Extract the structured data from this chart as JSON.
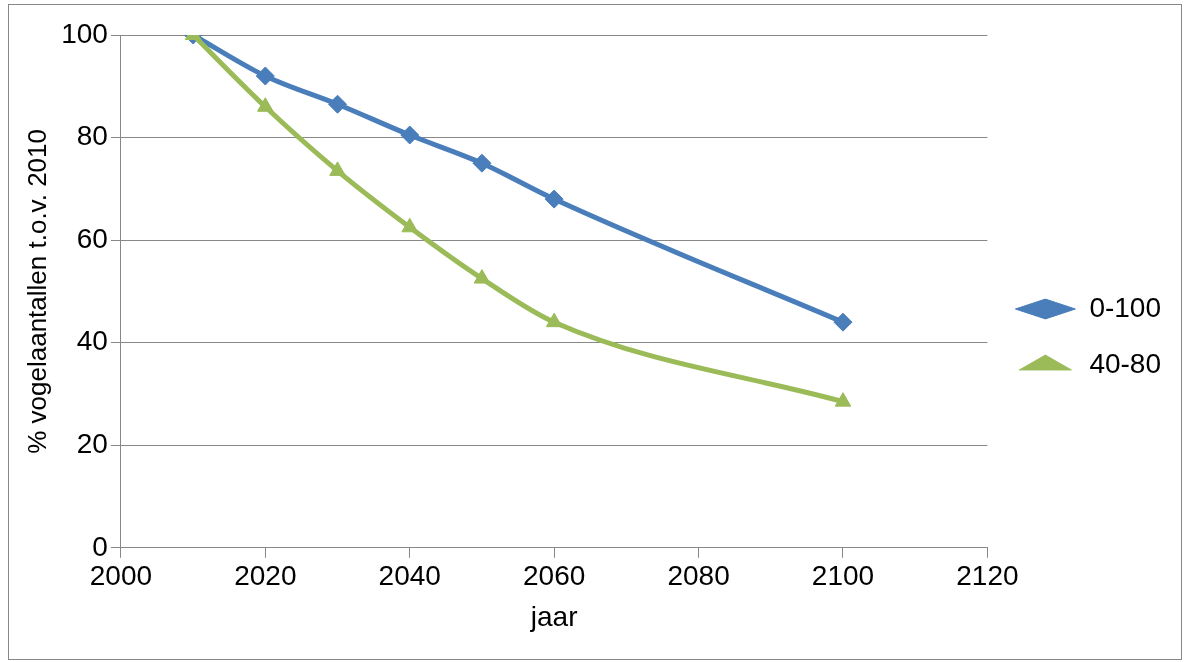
{
  "chart_data": {
    "type": "line",
    "xlabel": "jaar",
    "ylabel": "% vogelaantallen t.o.v. 2010",
    "x": [
      2010,
      2020,
      2030,
      2040,
      2050,
      2060,
      2100
    ],
    "series": [
      {
        "name": "0-100",
        "color": "#4a7ebb",
        "marker": "diamond",
        "values": [
          100,
          92,
          86.5,
          80.5,
          75,
          68,
          44
        ]
      },
      {
        "name": "40-80",
        "color": "#9bbb59",
        "marker": "triangle",
        "values": [
          100,
          86,
          73.5,
          62.5,
          52.5,
          44,
          28.5
        ]
      }
    ],
    "xlim": [
      2000,
      2120
    ],
    "xticks": [
      2000,
      2020,
      2040,
      2060,
      2080,
      2100,
      2120
    ],
    "ylim": [
      0,
      100
    ],
    "yticks": [
      0,
      20,
      40,
      60,
      80,
      100
    ],
    "grid": "y",
    "legend": "right",
    "line_style": "solid"
  }
}
